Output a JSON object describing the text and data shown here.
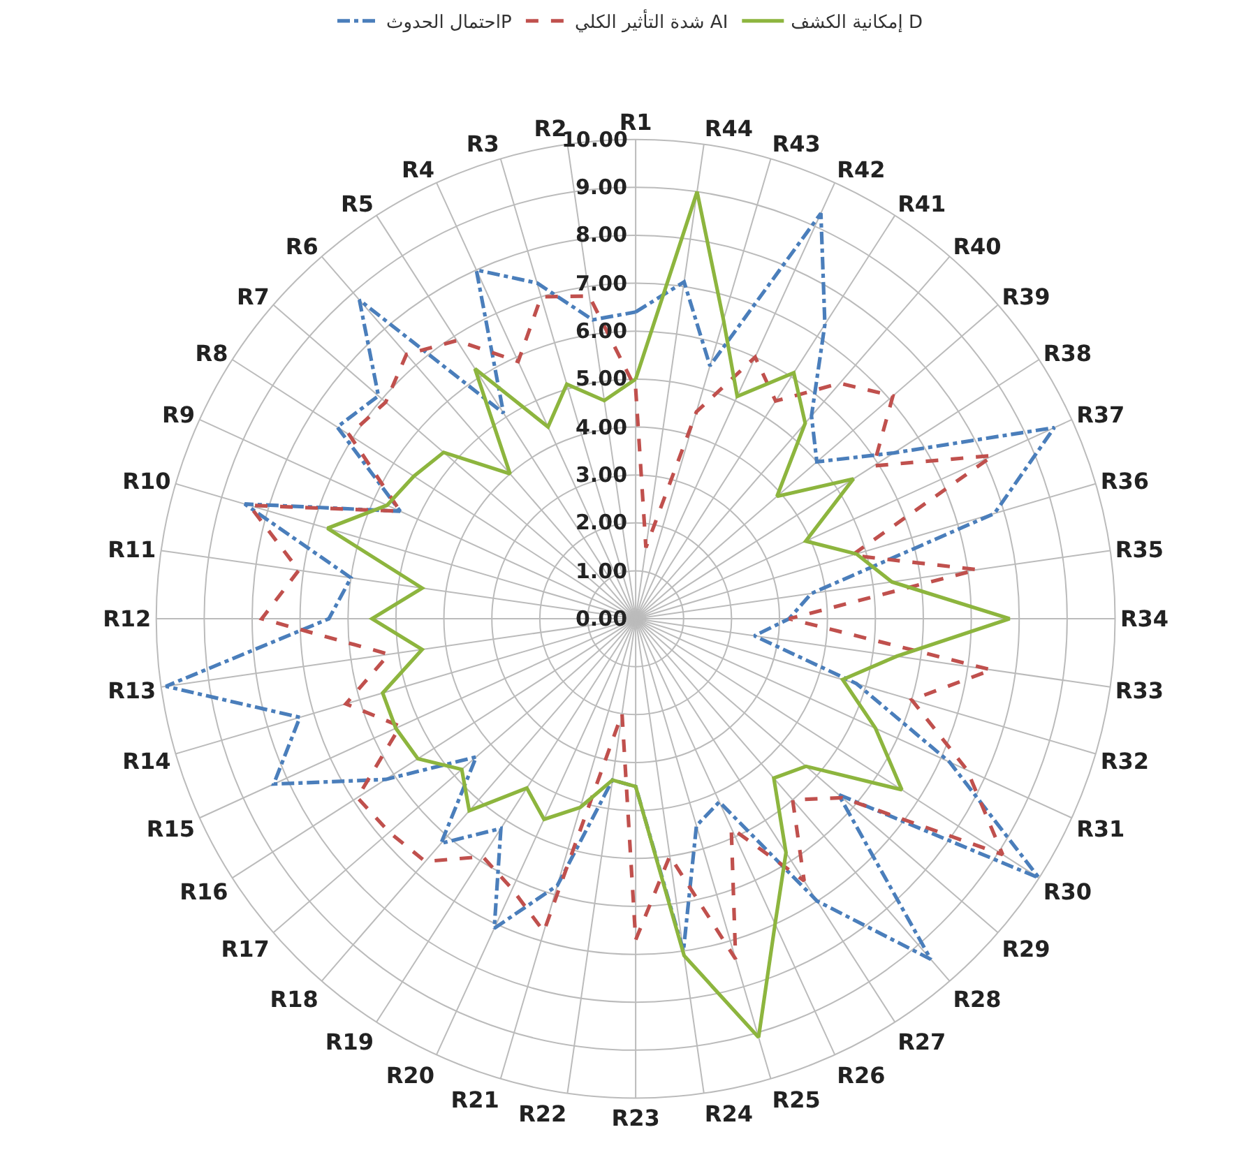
{
  "chart_data": {
    "type": "radar",
    "categories": [
      "R1",
      "R44",
      "R43",
      "R42",
      "R41",
      "R40",
      "R39",
      "R38",
      "R37",
      "R36",
      "R35",
      "R34",
      "R33",
      "R32",
      "R31",
      "R30",
      "R29",
      "R28",
      "R27",
      "R26",
      "R25",
      "R24",
      "R23",
      "R22",
      "R21",
      "R20",
      "R19",
      "R18",
      "R17",
      "R16",
      "R15",
      "R14",
      "R13",
      "R12",
      "R11",
      "R10",
      "R9",
      "R8",
      "R7",
      "R6",
      "R5",
      "R4",
      "R3",
      "R2"
    ],
    "series": [
      {
        "name": "احتمال الحدوثP",
        "color": "#4a7ebb",
        "line_style": "dashdot",
        "values": [
          6.4,
          7.1,
          5.5,
          9.3,
          7.3,
          5.6,
          5.0,
          6.4,
          9.6,
          7.8,
          3.7,
          3.2,
          2.5,
          4.8,
          7.2,
          10.0,
          5.6,
          9.4,
          7.0,
          4.2,
          4.5,
          7.0,
          3.5,
          3.4,
          5.8,
          7.1,
          5.2,
          6.2,
          4.4,
          6.2,
          8.3,
          7.3,
          9.9,
          6.4,
          6.0,
          8.5,
          5.4,
          7.4,
          7.1,
          8.8,
          5.1,
          8.0,
          7.3,
          6.3
        ]
      },
      {
        "name": "شدة التأثير الكلي AI",
        "color": "#c0504d",
        "line_style": "dashed",
        "values": [
          4.8,
          1.5,
          4.5,
          6.0,
          5.4,
          6.5,
          7.1,
          5.9,
          8.2,
          4.7,
          7.2,
          3.2,
          7.5,
          6.0,
          7.6,
          9.1,
          5.7,
          5.0,
          6.5,
          4.8,
          7.4,
          5.0,
          6.7,
          2.0,
          6.8,
          6.2,
          5.9,
          6.7,
          6.8,
          6.9,
          5.4,
          6.3,
          5.2,
          7.8,
          7.1,
          8.4,
          5.4,
          7.1,
          6.9,
          7.3,
          6.9,
          5.9,
          7.0,
          6.8
        ]
      },
      {
        "name": "إمكانية الكشف D",
        "color": "#8db53e",
        "line_style": "solid",
        "values": [
          5.0,
          9.0,
          6.5,
          5.1,
          6.1,
          5.4,
          3.9,
          5.4,
          3.9,
          4.8,
          5.4,
          7.8,
          5.5,
          4.5,
          5.5,
          6.6,
          4.7,
          4.4,
          5.8,
          7.0,
          9.1,
          7.1,
          3.5,
          3.4,
          4.1,
          4.6,
          4.2,
          5.3,
          4.8,
          5.4,
          5.5,
          5.5,
          4.5,
          5.5,
          4.5,
          6.7,
          5.7,
          5.5,
          5.3,
          4.0,
          6.2,
          4.4,
          5.1,
          4.6
        ]
      }
    ],
    "ylim": [
      0,
      10
    ],
    "yticks": [
      {
        "value": 0,
        "label": "0.00"
      },
      {
        "value": 1,
        "label": "1.00"
      },
      {
        "value": 2,
        "label": "2.00"
      },
      {
        "value": 3,
        "label": "3.00"
      },
      {
        "value": 4,
        "label": "4.00"
      },
      {
        "value": 5,
        "label": "5.00"
      },
      {
        "value": 6,
        "label": "6.00"
      },
      {
        "value": 7,
        "label": "7.00"
      },
      {
        "value": 8,
        "label": "8.00"
      },
      {
        "value": 9,
        "label": "9.00"
      },
      {
        "value": 10,
        "label": "10.00"
      }
    ],
    "grid": true,
    "legend": "top",
    "marker": "none"
  }
}
